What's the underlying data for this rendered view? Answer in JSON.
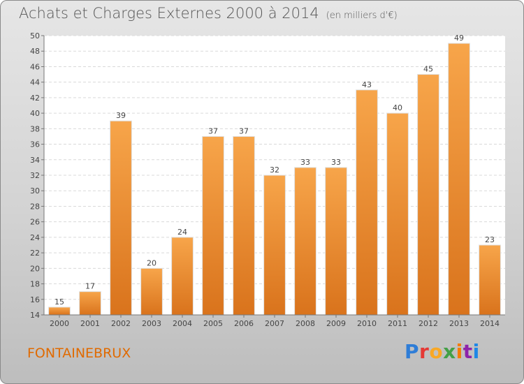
{
  "header": {
    "title": "Achats et Charges Externes 2000 à 2014",
    "subtitle": "(en milliers d'€)"
  },
  "footer": {
    "place": "FONTAINEBRUX",
    "logo": "Proxiti",
    "logo_colors": [
      "#2e7dd7",
      "#e53935",
      "#f9a825",
      "#43a047",
      "#f57c00",
      "#8e24aa",
      "#1e88e5"
    ]
  },
  "chart_data": {
    "type": "bar",
    "categories": [
      "2000",
      "2001",
      "2002",
      "2003",
      "2004",
      "2005",
      "2006",
      "2007",
      "2008",
      "2009",
      "2010",
      "2011",
      "2012",
      "2013",
      "2014"
    ],
    "values": [
      15,
      17,
      39,
      20,
      24,
      37,
      37,
      32,
      33,
      33,
      43,
      40,
      45,
      49,
      23
    ],
    "ylim": [
      14,
      50
    ],
    "yticks": [
      14,
      16,
      18,
      20,
      22,
      24,
      26,
      28,
      30,
      32,
      34,
      36,
      38,
      40,
      42,
      44,
      46,
      48,
      50
    ],
    "grid": true,
    "bar_color": "#f0922e",
    "data_labels": true
  }
}
